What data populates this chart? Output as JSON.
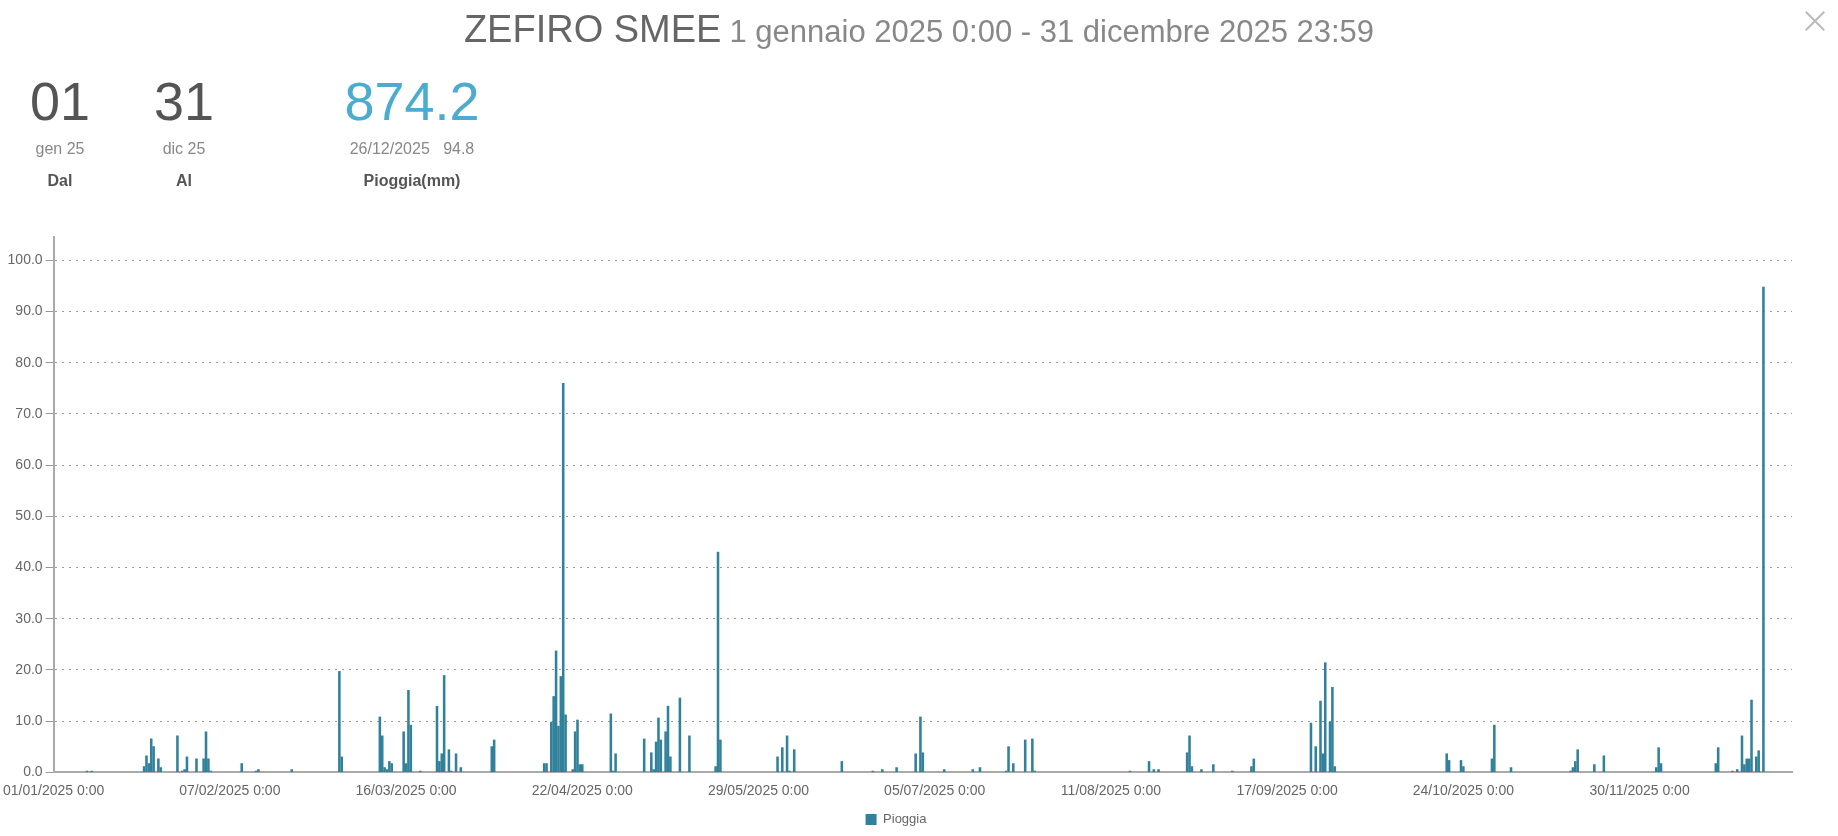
{
  "chart_data": {
    "type": "bar",
    "title": "ZEFIRO SMEE",
    "subtitle": "1 gennaio 2025 0:00 - 31 dicembre 2025 23:59",
    "annotations": [
      "01",
      "gen 25",
      "Dal",
      "31",
      "dic 25",
      "Al",
      "874.2",
      "26/12/2025   94.8",
      "Pioggia(mm)"
    ],
    "xlim": [
      "2025-01-01T00:00",
      "2025-12-31T23:59"
    ],
    "xticks": [
      {
        "value": "2025-01-01",
        "label": "01/01/2025 0:00"
      },
      {
        "value": "2025-02-07",
        "label": "07/02/2025 0:00"
      },
      {
        "value": "2025-03-16",
        "label": "16/03/2025 0:00"
      },
      {
        "value": "2025-04-22",
        "label": "22/04/2025 0:00"
      },
      {
        "value": "2025-05-29",
        "label": "29/05/2025 0:00"
      },
      {
        "value": "2025-07-05",
        "label": "05/07/2025 0:00"
      },
      {
        "value": "2025-08-11",
        "label": "11/08/2025 0:00"
      },
      {
        "value": "2025-09-17",
        "label": "17/09/2025 0:00"
      },
      {
        "value": "2025-10-24",
        "label": "24/10/2025 0:00"
      },
      {
        "value": "2025-11-30",
        "label": "30/11/2025 0:00"
      }
    ],
    "ylim": [
      0,
      104.5
    ],
    "yticks": [
      {
        "value": 0,
        "label": "0.0"
      },
      {
        "value": 10,
        "label": "10.0"
      },
      {
        "value": 20,
        "label": "20.0"
      },
      {
        "value": 30,
        "label": "30.0"
      },
      {
        "value": 40,
        "label": "40.0"
      },
      {
        "value": 50,
        "label": "50.0"
      },
      {
        "value": 60,
        "label": "60.0"
      },
      {
        "value": 70,
        "label": "70.0"
      },
      {
        "value": 80,
        "label": "80.0"
      },
      {
        "value": 90,
        "label": "90.0"
      },
      {
        "value": 100,
        "label": "100.0"
      }
    ],
    "grid": "y",
    "legend": "bottom",
    "series": [
      {
        "name": "Pioggia",
        "color": "#31819a",
        "x": [
          "2025-01-08",
          "2025-01-09",
          "2025-01-20",
          "2025-01-20T12:00",
          "2025-01-21",
          "2025-01-21T12:00",
          "2025-01-22",
          "2025-01-23",
          "2025-01-23T12:00",
          "2025-01-27",
          "2025-01-28",
          "2025-01-28T12:00",
          "2025-01-29",
          "2025-01-31",
          "2025-02-01T12:00",
          "2025-02-02",
          "2025-02-02T12:00",
          "2025-02-03",
          "2025-02-09T12:00",
          "2025-02-12T12:00",
          "2025-02-13",
          "2025-02-20",
          "2025-03-02",
          "2025-03-02T12:00",
          "2025-03-10T12:00",
          "2025-03-11",
          "2025-03-11T12:00",
          "2025-03-12",
          "2025-03-12T12:00",
          "2025-03-13",
          "2025-03-15T12:00",
          "2025-03-16",
          "2025-03-16T12:00",
          "2025-03-17",
          "2025-03-19",
          "2025-03-22T12:00",
          "2025-03-23",
          "2025-03-23T12:00",
          "2025-03-24",
          "2025-03-25",
          "2025-03-25T12:00",
          "2025-03-26T12:00",
          "2025-03-27T12:00",
          "2025-04-03",
          "2025-04-03T12:00",
          "2025-04-14",
          "2025-04-14T12:00",
          "2025-04-15T12:00",
          "2025-04-16",
          "2025-04-16T12:00",
          "2025-04-17",
          "2025-04-17T12:00",
          "2025-04-18",
          "2025-04-18T12:00",
          "2025-04-20",
          "2025-04-20T12:00",
          "2025-04-21",
          "2025-04-21T12:00",
          "2025-04-22",
          "2025-04-28",
          "2025-04-28T12:00",
          "2025-04-29",
          "2025-05-05",
          "2025-05-06T12:00",
          "2025-05-07",
          "2025-05-07T12:00",
          "2025-05-08",
          "2025-05-08T12:00",
          "2025-05-09T12:00",
          "2025-05-10",
          "2025-05-10T12:00",
          "2025-05-12T12:00",
          "2025-05-14T12:00",
          "2025-05-20",
          "2025-05-20T12:00",
          "2025-05-21",
          "2025-06-02",
          "2025-06-03",
          "2025-06-04",
          "2025-06-04T12:00",
          "2025-06-05T12:00",
          "2025-06-15T12:00",
          "2025-06-22",
          "2025-06-24",
          "2025-06-27",
          "2025-07-01",
          "2025-07-02",
          "2025-07-02T12:00",
          "2025-07-07",
          "2025-07-13",
          "2025-07-14T12:00",
          "2025-07-20",
          "2025-07-20T12:00",
          "2025-07-21T12:00",
          "2025-07-24",
          "2025-07-25T12:00",
          "2025-07-26",
          "2025-08-15",
          "2025-08-19",
          "2025-08-20",
          "2025-08-21",
          "2025-08-27",
          "2025-08-27T12:00",
          "2025-08-28",
          "2025-08-30",
          "2025-09-01T12:00",
          "2025-09-05T12:00",
          "2025-09-09T12:00",
          "2025-09-10",
          "2025-09-22",
          "2025-09-23",
          "2025-09-24",
          "2025-09-24T12:00",
          "2025-09-25",
          "2025-09-26",
          "2025-09-26T12:00",
          "2025-09-27",
          "2025-10-20T12:00",
          "2025-10-21",
          "2025-10-23T12:00",
          "2025-10-24",
          "2025-10-30",
          "2025-10-30T12:00",
          "2025-11-03",
          "2025-11-15T12:00",
          "2025-11-16",
          "2025-11-16T12:00",
          "2025-11-17",
          "2025-11-20T12:00",
          "2025-11-22T12:00",
          "2025-12-03T12:00",
          "2025-12-04",
          "2025-12-04T12:00",
          "2025-12-16",
          "2025-12-16T12:00",
          "2025-12-19T12:00",
          "2025-12-20T12:00",
          "2025-12-21T12:00",
          "2025-12-22",
          "2025-12-22T12:00",
          "2025-12-23",
          "2025-12-23T12:00",
          "2025-12-24T12:00",
          "2025-12-25",
          "2025-12-26"
        ],
        "values": [
          0.2,
          0.2,
          1.1,
          3.2,
          1.7,
          6.5,
          5.0,
          2.6,
          0.9,
          7.1,
          0.2,
          0.5,
          3.0,
          2.6,
          2.6,
          7.9,
          2.6,
          0.2,
          1.7,
          0.2,
          0.5,
          0.5,
          19.7,
          3.0,
          10.8,
          7.1,
          0.9,
          0.5,
          2.1,
          1.7,
          7.9,
          1.7,
          16.0,
          9.2,
          0.2,
          12.9,
          2.1,
          3.6,
          18.9,
          4.4,
          0.2,
          3.6,
          0.9,
          5.0,
          6.3,
          1.7,
          1.7,
          9.8,
          14.8,
          23.7,
          9.0,
          18.7,
          76.0,
          11.2,
          0.5,
          7.9,
          10.2,
          1.5,
          1.5,
          11.4,
          0.2,
          3.6,
          6.5,
          3.8,
          0.5,
          5.9,
          10.6,
          6.3,
          7.9,
          12.9,
          3.0,
          14.5,
          7.1,
          1.1,
          43.0,
          6.3,
          3.0,
          4.8,
          7.1,
          0.2,
          4.4,
          2.1,
          0.2,
          0.5,
          0.9,
          3.6,
          10.8,
          3.8,
          0.5,
          0.5,
          0.9,
          0.2,
          5.0,
          1.7,
          6.3,
          6.5,
          0.2,
          0.2,
          2.1,
          0.5,
          0.5,
          3.8,
          7.1,
          1.1,
          0.5,
          1.5,
          0.2,
          1.1,
          2.6,
          9.6,
          5.0,
          13.9,
          3.6,
          21.4,
          9.8,
          16.6,
          1.1,
          3.6,
          2.3,
          2.3,
          1.1,
          2.6,
          9.2,
          0.9,
          0.2,
          0.9,
          2.1,
          4.4,
          1.5,
          3.2,
          0.9,
          4.8,
          1.7,
          1.7,
          4.8,
          0.2,
          0.5,
          7.1,
          1.5,
          2.6,
          2.6,
          14.1,
          3.0,
          4.2,
          94.8
        ]
      }
    ]
  }
}
